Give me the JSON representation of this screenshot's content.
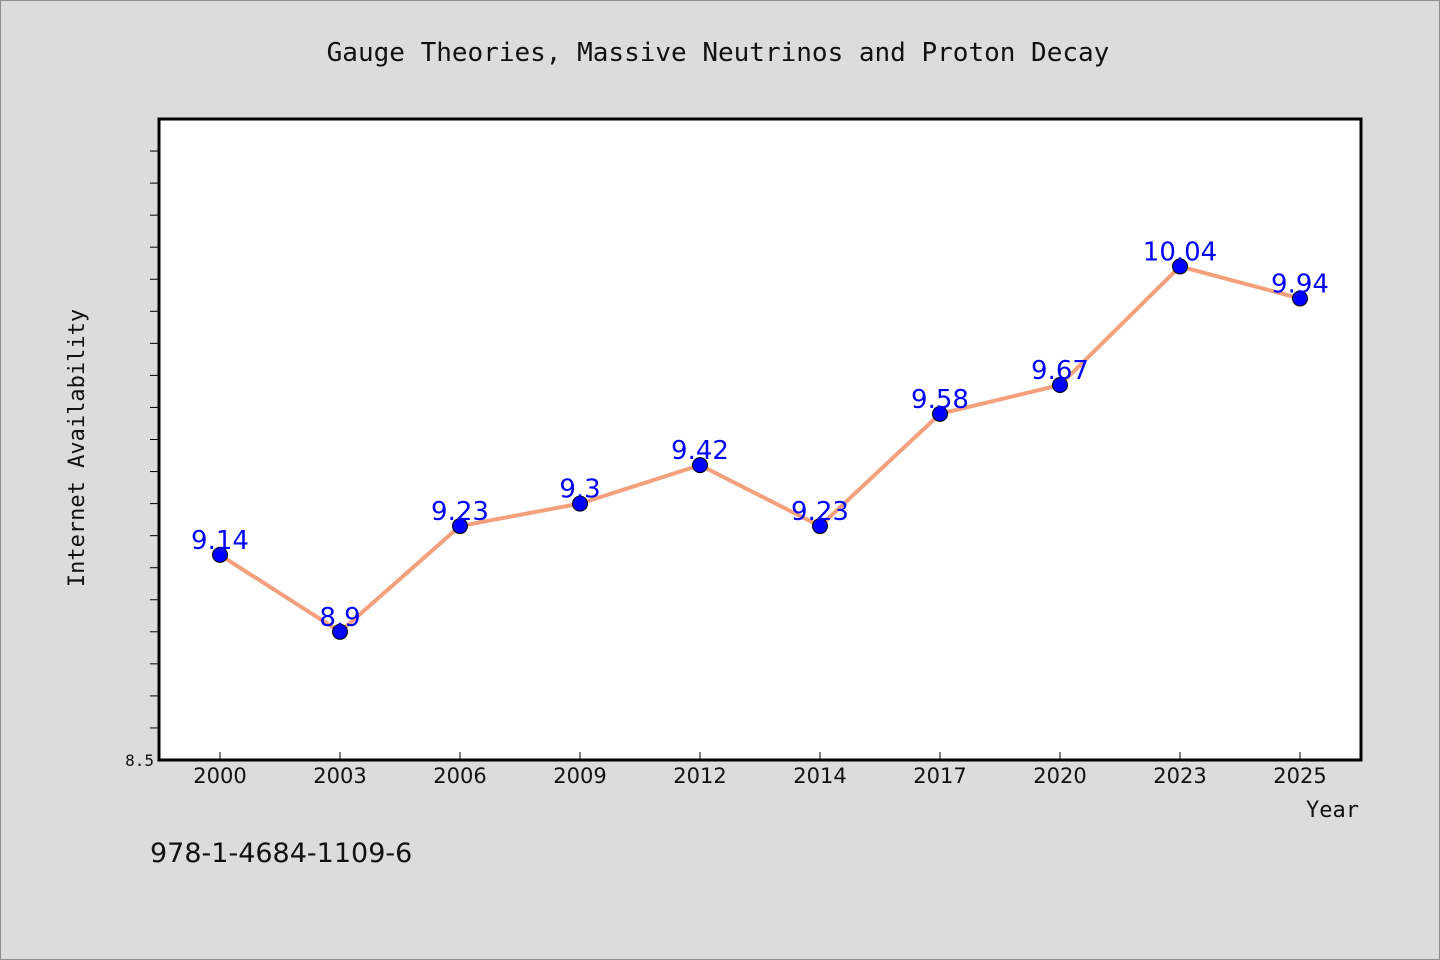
{
  "chart_data": {
    "type": "line",
    "title": "Gauge Theories, Massive Neutrinos and Proton Decay",
    "xlabel": "Year",
    "ylabel": "Internet Availability",
    "categories": [
      "2000",
      "2003",
      "2006",
      "2009",
      "2012",
      "2014",
      "2017",
      "2020",
      "2023",
      "2025"
    ],
    "series": [
      {
        "values": [
          9.14,
          8.9,
          9.23,
          9.3,
          9.42,
          9.23,
          9.58,
          9.67,
          10.04,
          9.94
        ],
        "labels": [
          "9.14",
          "8.9",
          "9.23",
          "9.3",
          "9.42",
          "9.23",
          "9.58",
          "9.67",
          "10.04",
          "9.94"
        ],
        "line_color": "#f4a07c",
        "marker_color": "#0000ff"
      }
    ],
    "ylim": [
      8.5,
      10.5
    ],
    "y_tick_labels": [
      "8.5"
    ],
    "y_minor_step": 0.1,
    "grid": false,
    "legend": "none"
  },
  "footer_text": "978-1-4684-1109-6",
  "colors": {
    "background": "#dcdcdc",
    "plot_background": "#ffffff",
    "line": "#f4a07c",
    "marker": "#0000ff",
    "data_label": "#0000ff"
  }
}
